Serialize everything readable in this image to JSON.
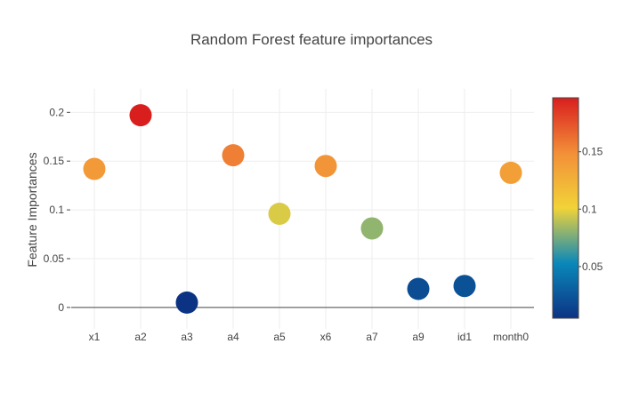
{
  "chart_data": {
    "type": "scatter",
    "title": "Random Forest feature importances",
    "xlabel": "",
    "ylabel": "Feature Importances",
    "categories": [
      "x1",
      "a2",
      "a3",
      "a4",
      "a5",
      "x6",
      "a7",
      "a9",
      "id1",
      "month0"
    ],
    "values": [
      0.142,
      0.197,
      0.005,
      0.156,
      0.096,
      0.145,
      0.081,
      0.019,
      0.022,
      0.138
    ],
    "ylim": [
      -0.022,
      0.224
    ],
    "yticks": [
      0,
      0.05,
      0.1,
      0.15,
      0.2
    ],
    "ytick_labels": [
      "0",
      "0.05",
      "0.1",
      "0.15",
      "0.2"
    ],
    "grid": true,
    "marker": "circle",
    "colorscale": {
      "name": "Portland",
      "range": [
        0.005,
        0.197
      ],
      "ticks": [
        0.05,
        0.1,
        0.15
      ],
      "tick_labels": [
        "0.05",
        "0.1",
        "0.15"
      ],
      "colors": [
        "#0c3383",
        "#0a88ba",
        "#f2d338",
        "#f28f38",
        "#d91e1e"
      ]
    }
  }
}
